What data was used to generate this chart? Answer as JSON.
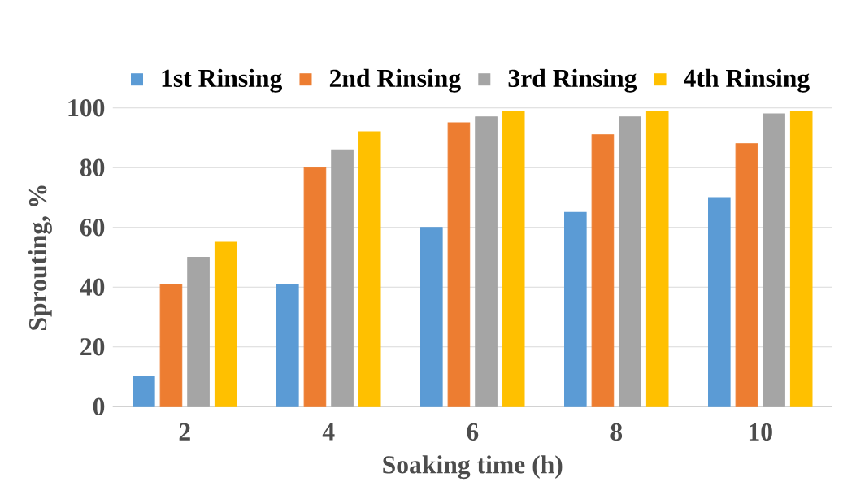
{
  "chart_data": {
    "type": "bar",
    "xlabel": "Soaking time (h)",
    "ylabel": "Sprouting, %",
    "categories": [
      "2",
      "4",
      "6",
      "8",
      "10"
    ],
    "series": [
      {
        "name": "1st Rinsing",
        "color": "#5b9bd5",
        "values": [
          10,
          41,
          60,
          65,
          70
        ]
      },
      {
        "name": "2nd Rinsing",
        "color": "#ed7d31",
        "values": [
          41,
          80,
          95,
          91,
          88
        ]
      },
      {
        "name": "3rd Rinsing",
        "color": "#a5a5a5",
        "values": [
          50,
          86,
          97,
          97,
          98
        ]
      },
      {
        "name": "4th Rinsing",
        "color": "#ffc000",
        "values": [
          55,
          92,
          99,
          99,
          99
        ]
      }
    ],
    "ylim": [
      0,
      100
    ],
    "yticks": [
      0,
      20,
      40,
      60,
      80,
      100
    ],
    "grid": "y",
    "legend": "top"
  }
}
